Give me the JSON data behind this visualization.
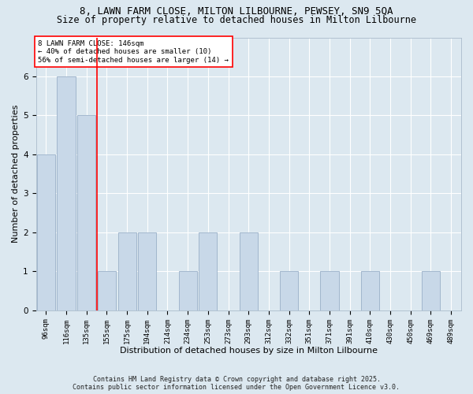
{
  "title1": "8, LAWN FARM CLOSE, MILTON LILBOURNE, PEWSEY, SN9 5QA",
  "title2": "Size of property relative to detached houses in Milton Lilbourne",
  "xlabel": "Distribution of detached houses by size in Milton Lilbourne",
  "ylabel": "Number of detached properties",
  "categories": [
    "96sqm",
    "116sqm",
    "135sqm",
    "155sqm",
    "175sqm",
    "194sqm",
    "214sqm",
    "234sqm",
    "253sqm",
    "273sqm",
    "293sqm",
    "312sqm",
    "332sqm",
    "351sqm",
    "371sqm",
    "391sqm",
    "410sqm",
    "430sqm",
    "450sqm",
    "469sqm",
    "489sqm"
  ],
  "values": [
    4,
    6,
    5,
    1,
    2,
    2,
    0,
    1,
    2,
    0,
    2,
    0,
    1,
    0,
    1,
    0,
    1,
    0,
    0,
    1,
    0
  ],
  "bar_color": "#c8d8e8",
  "bar_edge_color": "#9ab0c8",
  "vline_x": 2.5,
  "vline_color": "red",
  "ylim": [
    0,
    7
  ],
  "yticks": [
    0,
    1,
    2,
    3,
    4,
    5,
    6,
    7
  ],
  "annotation_title": "8 LAWN FARM CLOSE: 146sqm",
  "annotation_line1": "← 40% of detached houses are smaller (10)",
  "annotation_line2": "56% of semi-detached houses are larger (14) →",
  "annotation_box_color": "red",
  "footer": "Contains HM Land Registry data © Crown copyright and database right 2025.\nContains public sector information licensed under the Open Government Licence v3.0.",
  "bg_color": "#dce8f0",
  "plot_bg_color": "#dce8f0",
  "grid_color": "#ffffff",
  "title_fontsize": 9,
  "subtitle_fontsize": 8.5,
  "axis_label_fontsize": 8,
  "tick_fontsize": 6.5,
  "footer_fontsize": 6,
  "annotation_fontsize": 6.5
}
